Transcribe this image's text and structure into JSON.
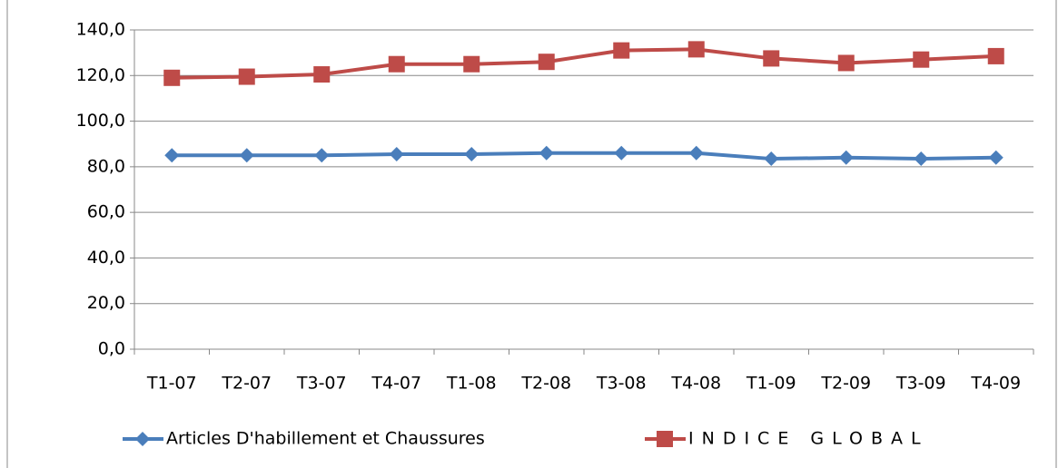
{
  "chart_data": {
    "type": "line",
    "categories": [
      "T1-07",
      "T2-07",
      "T3-07",
      "T4-07",
      "T1-08",
      "T2-08",
      "T3-08",
      "T4-08",
      "T1-09",
      "T2-09",
      "T3-09",
      "T4-09"
    ],
    "series": [
      {
        "name": "Articles D'habillement et Chaussures",
        "color": "#4a7ebb",
        "marker": "diamond",
        "values": [
          85,
          85,
          85,
          85.5,
          85.5,
          86,
          86,
          86,
          83.5,
          84,
          83.5,
          84
        ]
      },
      {
        "name": "INDICE GLOBAL",
        "color": "#be4b48",
        "marker": "square",
        "values": [
          119,
          119.5,
          120.5,
          125,
          125,
          126,
          131,
          131.5,
          127.5,
          125.5,
          127,
          128.5
        ]
      }
    ],
    "ylim": [
      0,
      140
    ],
    "yticks": [
      {
        "value": 0,
        "label": "0,0"
      },
      {
        "value": 20,
        "label": "20,0"
      },
      {
        "value": 40,
        "label": "40,0"
      },
      {
        "value": 60,
        "label": "60,0"
      },
      {
        "value": 80,
        "label": "80,0"
      },
      {
        "value": 100,
        "label": "100,0"
      },
      {
        "value": 120,
        "label": "120,0"
      },
      {
        "value": 140,
        "label": "140,0"
      }
    ],
    "grid": true,
    "legend": "bottom"
  }
}
